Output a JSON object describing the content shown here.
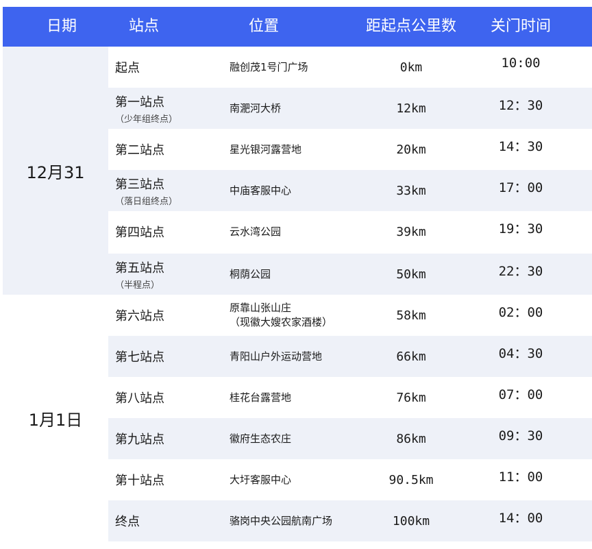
{
  "header": {
    "date": "日期",
    "station": "站点",
    "location": "位置",
    "distance": "距起点公里数",
    "close_time": "关门时间"
  },
  "colors": {
    "header_bg": "#3e64ef",
    "alt_row": "#eef1f8"
  },
  "groups": [
    {
      "date": "12月31"
    },
    {
      "date": "1月1日"
    }
  ],
  "rows": [
    {
      "station": "起点",
      "note": "",
      "location": "融创茂1号门广场",
      "distance": "0km",
      "time": "10:00"
    },
    {
      "station": "第一站点",
      "note": "（少年组终点）",
      "location": "南淝河大桥",
      "distance": "12km",
      "time": "12：30"
    },
    {
      "station": "第二站点",
      "note": "",
      "location": "星光银河露营地",
      "distance": "20km",
      "time": "14：30"
    },
    {
      "station": "第三站点",
      "note": "（落日组终点）",
      "location": "中庙客服中心",
      "distance": "33km",
      "time": "17：00"
    },
    {
      "station": "第四站点",
      "note": "",
      "location": "云水湾公园",
      "distance": "39km",
      "time": "19：30"
    },
    {
      "station": "第五站点",
      "note": "（半程点）",
      "location": "桐荫公园",
      "distance": "50km",
      "time": "22：30"
    },
    {
      "station": "第六站点",
      "note": "",
      "location": "原靠山张山庄\n（现徽大嫂农家酒楼）",
      "distance": "58km",
      "time": "02：00"
    },
    {
      "station": "第七站点",
      "note": "",
      "location": "青阳山户外运动营地",
      "distance": "66km",
      "time": "04：30"
    },
    {
      "station": "第八站点",
      "note": "",
      "location": "桂花台露营地",
      "distance": "76km",
      "time": "07：00"
    },
    {
      "station": "第九站点",
      "note": "",
      "location": "徽府生态农庄",
      "distance": "86km",
      "time": "09：30"
    },
    {
      "station": "第十站点",
      "note": "",
      "location": "大圩客服中心",
      "distance": "90.5km",
      "time": "11：00"
    },
    {
      "station": "终点",
      "note": "",
      "location": "骆岗中央公园航南广场",
      "distance": "100km",
      "time": "14：00"
    }
  ]
}
